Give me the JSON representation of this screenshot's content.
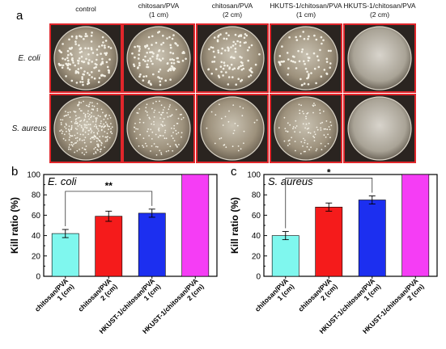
{
  "panel_a": {
    "letter": "a",
    "columns": [
      {
        "l1": "control",
        "l2": ""
      },
      {
        "l1": "chitosan/PVA",
        "l2": "(1 cm)"
      },
      {
        "l1": "chitosan/PVA",
        "l2": "(2 cm)"
      },
      {
        "l1": "HKUTS-1/chitosan/PVA",
        "l2": "(1 cm)"
      },
      {
        "l1": "HKUTS-1/chitosan/PVA",
        "l2": "(2 cm)"
      }
    ],
    "rows": [
      "E. coli",
      "S. aureus"
    ],
    "colony_density": [
      [
        1.0,
        0.8,
        0.7,
        0.5,
        0.0
      ],
      [
        1.0,
        0.45,
        0.12,
        0.35,
        0.0
      ]
    ],
    "frame_color": "#e0262b",
    "plate_color": "#9a8e78"
  },
  "chart_data": [
    {
      "type": "bar",
      "panel": "b",
      "title": "E. coli",
      "ylabel": "Kill ratio (%)",
      "ylim": [
        0,
        100
      ],
      "yticks": [
        0,
        20,
        40,
        60,
        80,
        100
      ],
      "categories": [
        [
          "chitosan/PVA",
          "1 (cm)"
        ],
        [
          "chitosan/PVA",
          "2 (cm)"
        ],
        [
          "HKUST-1/chitosan/PVA",
          "1 (cm)"
        ],
        [
          "HKUST-1/chitosan/PVA",
          "2 (cm)"
        ]
      ],
      "values": [
        42,
        59,
        62,
        100
      ],
      "errors": [
        4,
        5,
        4,
        0
      ],
      "colors": [
        "#7ff7ee",
        "#f51b1b",
        "#1c2ff0",
        "#f53df5"
      ],
      "significance": {
        "from": 0,
        "to": 2,
        "label": "**"
      }
    },
    {
      "type": "bar",
      "panel": "c",
      "title": "S. aureus",
      "ylabel": "Kill ratio (%)",
      "ylim": [
        0,
        100
      ],
      "yticks": [
        0,
        20,
        40,
        60,
        80,
        100
      ],
      "categories": [
        [
          "chitosan/PVA",
          "1 (cm)"
        ],
        [
          "chitosan/PVA",
          "2 (cm)"
        ],
        [
          "HKUST-1/chitosan/PVA",
          "1 (cm)"
        ],
        [
          "HKUST-1/chitosan/PVA",
          "2 (cm)"
        ]
      ],
      "values": [
        40,
        68,
        75,
        100
      ],
      "errors": [
        4,
        4,
        4,
        0
      ],
      "colors": [
        "#7ff7ee",
        "#f51b1b",
        "#1c2ff0",
        "#f53df5"
      ],
      "significance": {
        "from": 0,
        "to": 2,
        "label": "*"
      }
    }
  ]
}
